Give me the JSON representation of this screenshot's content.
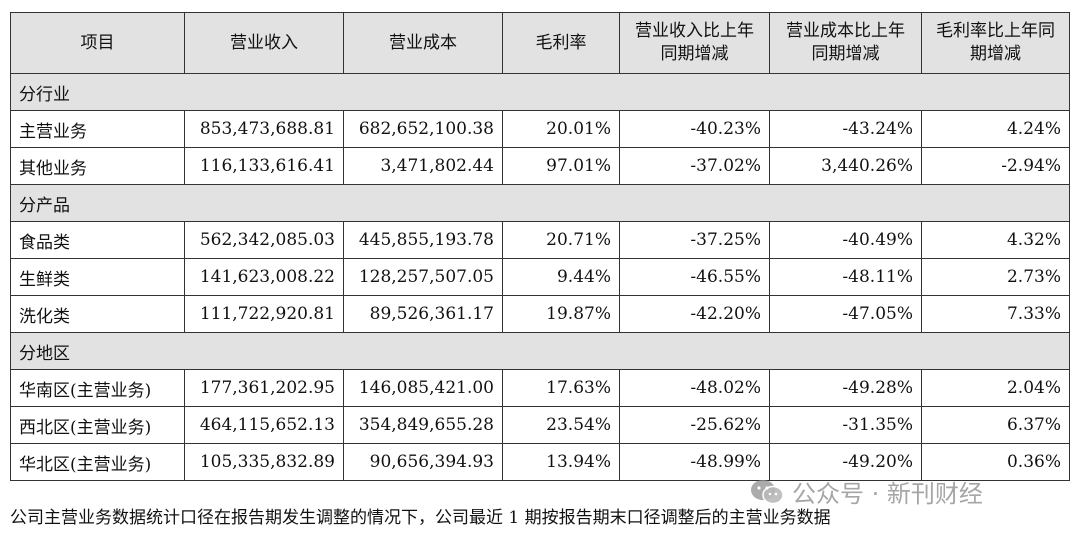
{
  "headers": [
    "项目",
    "营业收入",
    "营业成本",
    "毛利率",
    "营业收入比上年同期增减",
    "营业成本比上年同期增减",
    "毛利率比上年同期增减"
  ],
  "sections": [
    {
      "title": "分行业",
      "rows": [
        {
          "item": "主营业务",
          "revenue": "853,473,688.81",
          "cost": "682,652,100.38",
          "margin": "20.01%",
          "rev_change": "-40.23%",
          "cost_change": "-43.24%",
          "margin_change": "4.24%"
        },
        {
          "item": "其他业务",
          "revenue": "116,133,616.41",
          "cost": "3,471,802.44",
          "margin": "97.01%",
          "rev_change": "-37.02%",
          "cost_change": "3,440.26%",
          "margin_change": "-2.94%"
        }
      ]
    },
    {
      "title": "分产品",
      "rows": [
        {
          "item": "食品类",
          "revenue": "562,342,085.03",
          "cost": "445,855,193.78",
          "margin": "20.71%",
          "rev_change": "-37.25%",
          "cost_change": "-40.49%",
          "margin_change": "4.32%"
        },
        {
          "item": "生鲜类",
          "revenue": "141,623,008.22",
          "cost": "128,257,507.05",
          "margin": "9.44%",
          "rev_change": "-46.55%",
          "cost_change": "-48.11%",
          "margin_change": "2.73%"
        },
        {
          "item": "洗化类",
          "revenue": "111,722,920.81",
          "cost": "89,526,361.17",
          "margin": "19.87%",
          "rev_change": "-42.20%",
          "cost_change": "-47.05%",
          "margin_change": "7.33%"
        }
      ]
    },
    {
      "title": "分地区",
      "rows": [
        {
          "item": "华南区(主营业务)",
          "revenue": "177,361,202.95",
          "cost": "146,085,421.00",
          "margin": "17.63%",
          "rev_change": "-48.02%",
          "cost_change": "-49.28%",
          "margin_change": "2.04%"
        },
        {
          "item": "西北区(主营业务)",
          "revenue": "464,115,652.13",
          "cost": "354,849,655.28",
          "margin": "23.54%",
          "rev_change": "-25.62%",
          "cost_change": "-31.35%",
          "margin_change": "6.37%"
        },
        {
          "item": "华北区(主营业务)",
          "revenue": "105,335,832.89",
          "cost": "90,656,394.93",
          "margin": "13.94%",
          "rev_change": "-48.99%",
          "cost_change": "-49.20%",
          "margin_change": "0.36%"
        }
      ]
    }
  ],
  "footnote": "公司主营业务数据统计口径在报告期发生调整的情况下，公司最近 1 期按报告期末口径调整后的主营业务数据",
  "watermark": {
    "text": "公众号 · 新刊财经",
    "icon": "wechat-icon"
  }
}
